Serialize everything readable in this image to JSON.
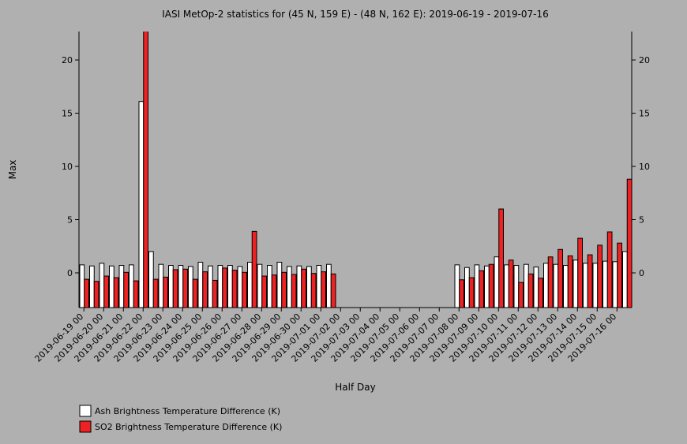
{
  "chart_data": {
    "type": "bar",
    "title": "IASI MetOp-2 statistics for (45 N, 159 E) - (48 N, 162 E): 2019-06-19 - 2019-07-16",
    "x_label": "Half Day",
    "y_label": "Max",
    "categories": [
      "2019-06-19 00",
      null,
      "2019-06-20 00",
      null,
      "2019-06-21 00",
      null,
      "2019-06-22 00",
      null,
      "2019-06-23 00",
      null,
      "2019-06-24 00",
      null,
      "2019-06-25 00",
      null,
      "2019-06-26 00",
      null,
      "2019-06-27 00",
      null,
      "2019-06-28 00",
      null,
      "2019-06-29 00",
      null,
      "2019-06-30 00",
      null,
      "2019-07-01 00",
      null,
      "2019-07-02 00",
      null,
      "2019-07-03 00",
      null,
      "2019-07-04 00",
      null,
      "2019-07-05 00",
      null,
      "2019-07-06 00",
      null,
      "2019-07-07 00",
      null,
      "2019-07-08 00",
      null,
      "2019-07-09 00",
      null,
      "2019-07-10 00",
      null,
      "2019-07-11 00",
      null,
      "2019-07-12 00",
      null,
      "2019-07-13 00",
      null,
      "2019-07-14 00",
      null,
      "2019-07-15 00",
      null,
      "2019-07-16 00",
      null
    ],
    "series": [
      {
        "name": "Ash Brightness Temperature Difference (K)",
        "color": "#ffffff",
        "values": [
          0.75,
          0.65,
          0.9,
          0.65,
          0.7,
          0.75,
          16.1,
          2.0,
          0.8,
          0.7,
          0.7,
          0.6,
          1.0,
          0.65,
          0.7,
          0.7,
          0.6,
          1.0,
          0.8,
          0.7,
          1.0,
          0.6,
          0.65,
          0.6,
          0.7,
          0.8,
          null,
          null,
          null,
          null,
          null,
          null,
          null,
          null,
          null,
          null,
          null,
          null,
          0.75,
          0.5,
          0.75,
          0.65,
          1.5,
          0.75,
          0.7,
          0.8,
          0.55,
          0.9,
          0.8,
          0.7,
          1.2,
          0.9,
          0.9,
          1.1,
          1.05,
          2.0
        ]
      },
      {
        "name": "SO2 Brightness Temperature Difference (K)",
        "color": "#ee2222",
        "values": [
          -0.6,
          -0.8,
          -0.3,
          -0.45,
          0.05,
          -0.75,
          22.7,
          -0.6,
          -0.4,
          0.3,
          0.35,
          -0.6,
          0.1,
          -0.7,
          0.45,
          0.25,
          0.05,
          3.9,
          -0.3,
          -0.2,
          0.05,
          -0.15,
          0.35,
          -0.05,
          0.1,
          -0.1,
          null,
          null,
          null,
          null,
          null,
          null,
          null,
          null,
          null,
          null,
          null,
          null,
          -0.65,
          -0.45,
          0.2,
          0.8,
          6.0,
          1.2,
          -0.9,
          -0.1,
          -0.5,
          1.5,
          2.2,
          1.6,
          3.25,
          1.7,
          2.6,
          3.85,
          2.8,
          8.8
        ]
      }
    ],
    "ylim": [
      -3.26,
      22.67
    ],
    "yticks": [
      0,
      5,
      10,
      15,
      20
    ]
  }
}
